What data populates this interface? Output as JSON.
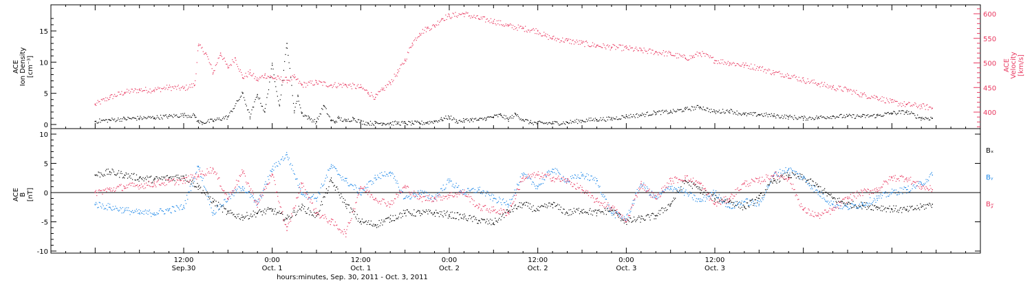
{
  "chart_data": [
    {
      "type": "scatter",
      "panel": "top",
      "ylabel_left": [
        "ACE",
        "Ion Density",
        "[cm⁻³]"
      ],
      "ylabel_right": [
        "ACE",
        "Velocity",
        "[km/s]"
      ],
      "ylim_left": [
        0,
        18
      ],
      "yticks_left": [
        0,
        5,
        10,
        15
      ],
      "ylim_right": [
        365,
        620
      ],
      "yticks_right": [
        400,
        450,
        500,
        550,
        600
      ],
      "series": [
        {
          "name": "",
          "axis": "left",
          "color": "#000000",
          "x_hours": [
            0,
            2,
            4,
            6,
            8,
            10,
            12,
            13.5,
            14,
            14.5,
            16,
            18,
            20,
            21,
            22,
            23,
            24,
            25,
            26,
            27,
            27.5,
            28,
            29,
            30,
            31,
            32,
            32.5,
            33,
            34,
            35,
            36,
            37,
            38,
            39,
            40,
            41,
            42,
            43,
            44,
            45,
            46,
            47,
            48,
            49,
            50,
            51,
            52,
            53,
            54,
            55,
            56,
            57,
            58,
            59,
            60,
            62,
            64,
            66,
            68,
            70,
            72,
            74,
            76,
            78,
            80,
            82,
            84,
            86,
            88,
            90,
            92,
            94,
            96,
            98,
            100,
            102,
            104,
            106,
            108,
            110,
            112,
            113.5
          ],
          "values": [
            0.5,
            0.7,
            0.9,
            1.0,
            1.1,
            1.3,
            1.5,
            1.4,
            0.4,
            0.3,
            0.6,
            1.2,
            5.0,
            1.2,
            4.8,
            2.0,
            9.5,
            3.0,
            13.0,
            2.2,
            4.5,
            1.8,
            1.0,
            0.4,
            3.0,
            0.6,
            0.4,
            1.0,
            0.5,
            1.0,
            0.4,
            0.2,
            0.2,
            0.2,
            0.2,
            0.2,
            0.2,
            0.2,
            0.2,
            0.3,
            0.5,
            0.8,
            1.2,
            0.5,
            0.6,
            0.8,
            0.7,
            1.0,
            1.2,
            1.5,
            0.8,
            1.6,
            0.8,
            0.3,
            0.2,
            0.2,
            0.3,
            0.6,
            0.8,
            0.9,
            1.3,
            1.5,
            1.9,
            2.0,
            2.4,
            2.8,
            2.0,
            2.2,
            1.6,
            1.6,
            1.4,
            1.2,
            1.0,
            1.1,
            1.3,
            1.3,
            1.3,
            1.4,
            1.8,
            2.0,
            1.0,
            1.0
          ]
        },
        {
          "name": "",
          "axis": "right",
          "color": "#e8365e",
          "x_hours": [
            0,
            2,
            4,
            6,
            8,
            10,
            12,
            13.5,
            14,
            15,
            16,
            17,
            18,
            19,
            20,
            21,
            22,
            23,
            24,
            26,
            27,
            28,
            30,
            32,
            34,
            36,
            37,
            38,
            39,
            40,
            41,
            42,
            43,
            44,
            45,
            46,
            47,
            48,
            50,
            52,
            54,
            56,
            58,
            60,
            61,
            62,
            64,
            66,
            68,
            70,
            72,
            74,
            76,
            78,
            80,
            81,
            82,
            84,
            86,
            88,
            90,
            92,
            94,
            96,
            98,
            100,
            102,
            104,
            106,
            108,
            110,
            112,
            113.5
          ],
          "values": [
            415,
            430,
            440,
            445,
            445,
            450,
            448,
            455,
            535,
            520,
            480,
            520,
            490,
            510,
            470,
            480,
            465,
            475,
            470,
            465,
            470,
            455,
            460,
            455,
            455,
            450,
            440,
            430,
            445,
            460,
            480,
            505,
            540,
            560,
            570,
            575,
            590,
            595,
            600,
            590,
            585,
            575,
            570,
            565,
            555,
            550,
            545,
            540,
            535,
            532,
            530,
            525,
            522,
            518,
            510,
            512,
            520,
            505,
            500,
            495,
            490,
            480,
            475,
            465,
            458,
            450,
            445,
            435,
            430,
            420,
            415,
            412,
            408
          ]
        }
      ]
    },
    {
      "type": "scatter",
      "panel": "bottom",
      "ylabel_left": [
        "ACE",
        "B",
        "[nT]"
      ],
      "ylim": [
        -11,
        11
      ],
      "yticks": [
        -10,
        -5,
        0,
        5,
        10
      ],
      "legend_labels": [
        "Bₓ",
        "Bᵧ",
        "B𝓏"
      ],
      "legend_colors": [
        "#000000",
        "#1a86e8",
        "#e8365e"
      ],
      "series": [
        {
          "name": "Bₓ",
          "color": "#000000",
          "x_hours": [
            0,
            2,
            4,
            6,
            8,
            10,
            12,
            14,
            16,
            18,
            20,
            22,
            24,
            26,
            28,
            30,
            32,
            34,
            36,
            38,
            40,
            42,
            44,
            46,
            48,
            50,
            52,
            54,
            56,
            58,
            60,
            62,
            64,
            66,
            68,
            70,
            72,
            74,
            76,
            78,
            80,
            82,
            84,
            86,
            88,
            90,
            92,
            94,
            96,
            98,
            100,
            102,
            104,
            106,
            108,
            110,
            112,
            113.5
          ],
          "values": [
            3.0,
            3.5,
            3.0,
            2.5,
            2.2,
            2.5,
            2.8,
            1.0,
            -1.5,
            -3.5,
            -4.2,
            -3.5,
            -3.0,
            -4.5,
            -2.5,
            -4.0,
            2.0,
            -2.0,
            -5.0,
            -5.5,
            -4.5,
            -3.5,
            -3.5,
            -3.5,
            -3.8,
            -4.2,
            -4.8,
            -5.2,
            -3.2,
            -2.0,
            -3.0,
            -2.0,
            -3.5,
            -3.0,
            -3.5,
            -3.0,
            -5.0,
            -4.5,
            -4.0,
            -2.0,
            2.0,
            0.5,
            -1.0,
            -1.5,
            -2.5,
            -1.0,
            2.0,
            3.0,
            2.5,
            1.0,
            -1.0,
            -2.0,
            -2.2,
            -2.5,
            -2.8,
            -3.0,
            -2.5,
            -2.0
          ]
        },
        {
          "name": "Bᵧ",
          "color": "#1a86e8",
          "x_hours": [
            0,
            2,
            4,
            6,
            8,
            10,
            12,
            14,
            16,
            18,
            20,
            22,
            24,
            26,
            28,
            30,
            32,
            34,
            36,
            38,
            40,
            42,
            44,
            46,
            48,
            50,
            52,
            54,
            56,
            58,
            60,
            62,
            64,
            66,
            68,
            70,
            72,
            74,
            76,
            78,
            80,
            82,
            84,
            86,
            88,
            90,
            92,
            94,
            96,
            98,
            100,
            102,
            104,
            106,
            108,
            110,
            112,
            113.5
          ],
          "values": [
            -2.0,
            -2.5,
            -3.0,
            -3.5,
            -3.5,
            -3.0,
            -2.5,
            4.5,
            -3.5,
            -1.0,
            1.0,
            -2.0,
            4.0,
            6.5,
            0.0,
            -1.0,
            4.5,
            2.0,
            0.0,
            2.5,
            3.5,
            -1.0,
            0.0,
            -1.0,
            2.0,
            0.0,
            0.5,
            -1.0,
            -2.0,
            3.0,
            1.0,
            4.0,
            2.0,
            3.0,
            2.0,
            -3.5,
            -4.5,
            1.5,
            -1.0,
            1.0,
            0.0,
            -1.5,
            0.0,
            -2.5,
            -1.5,
            -2.0,
            3.0,
            4.0,
            2.5,
            0.0,
            -2.0,
            -2.5,
            -2.0,
            -1.0,
            0.0,
            0.5,
            1.5,
            3.0
          ]
        },
        {
          "name": "B𝓏",
          "color": "#e8365e",
          "x_hours": [
            0,
            2,
            4,
            6,
            8,
            10,
            12,
            14,
            16,
            18,
            20,
            22,
            24,
            26,
            28,
            30,
            32,
            34,
            36,
            38,
            40,
            42,
            44,
            46,
            48,
            50,
            52,
            54,
            56,
            58,
            60,
            62,
            64,
            66,
            68,
            70,
            72,
            74,
            76,
            78,
            80,
            82,
            84,
            86,
            88,
            90,
            92,
            94,
            96,
            98,
            100,
            102,
            104,
            106,
            108,
            110,
            112,
            113.5
          ],
          "values": [
            0.0,
            0.5,
            1.0,
            1.2,
            1.5,
            1.8,
            2.0,
            3.0,
            4.0,
            -1.0,
            3.5,
            -2.0,
            3.0,
            -6.5,
            1.5,
            -3.5,
            -5.0,
            -7.0,
            1.0,
            -1.0,
            -2.0,
            1.0,
            -1.0,
            -1.0,
            -0.5,
            0.0,
            -2.5,
            -3.0,
            -3.5,
            2.5,
            3.0,
            2.5,
            2.0,
            0.5,
            -1.5,
            -2.5,
            -5.0,
            1.5,
            -1.0,
            2.0,
            2.5,
            1.5,
            -2.0,
            -1.0,
            1.5,
            2.0,
            3.0,
            2.5,
            -3.0,
            -4.0,
            -3.0,
            -1.0,
            0.0,
            0.5,
            2.5,
            2.5,
            1.0,
            0.5
          ]
        }
      ]
    },
    {
      "type": "axis",
      "xlabel": "hours:minutes, Sep. 30, 2011 - Oct. 3, 2011",
      "x_range_hours": [
        -6,
        120
      ],
      "major_ticks": [
        {
          "hour": 12,
          "time": "12:00",
          "date": "Sep.30"
        },
        {
          "hour": 24,
          "time": "0:00",
          "date": "Oct. 1"
        },
        {
          "hour": 36,
          "time": "12:00",
          "date": "Oct. 1"
        },
        {
          "hour": 48,
          "time": "0:00",
          "date": "Oct. 2"
        },
        {
          "hour": 60,
          "time": "12:00",
          "date": "Oct. 2"
        },
        {
          "hour": 72,
          "time": "0:00",
          "date": "Oct. 3"
        },
        {
          "hour": 84,
          "time": "12:00",
          "date": "Oct. 3"
        }
      ]
    }
  ]
}
